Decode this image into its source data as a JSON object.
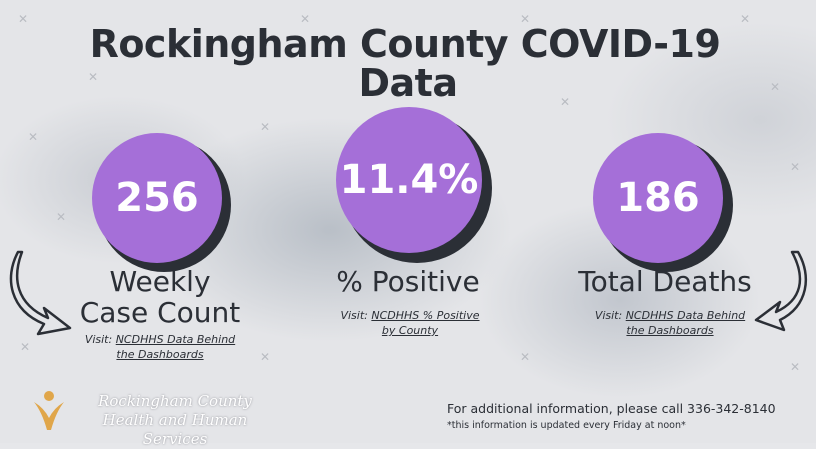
{
  "title": {
    "line1": "Rockingham County COVID-19",
    "line2": "Data"
  },
  "stats": [
    {
      "value": "256",
      "label_line1": "Weekly",
      "label_line2": "Case Count",
      "visit_prefix": "Visit:",
      "link_line1": "NCDHHS Data Behind",
      "link_line2": "the Dashboards"
    },
    {
      "value": "11.4%",
      "label_line1": "% Positive",
      "visit_prefix": "Visit:",
      "link_line1": "NCDHHS % Positive",
      "link_line2": "by County"
    },
    {
      "value": "186",
      "label_line1": "Total Deaths",
      "visit_prefix": "Visit:",
      "link_line1": "NCDHHS Data Behind",
      "link_line2": "the Dashboards"
    }
  ],
  "organization": {
    "line1": "Rockingham County",
    "line2": "Health and Human Services"
  },
  "footer": {
    "info": "For additional information, please call 336-342-8140",
    "note": "*this information is updated every Friday at noon*"
  },
  "colors": {
    "accent": "#a56fd8",
    "dark": "#2b2f36",
    "logo_gold": "#e0a64a"
  }
}
